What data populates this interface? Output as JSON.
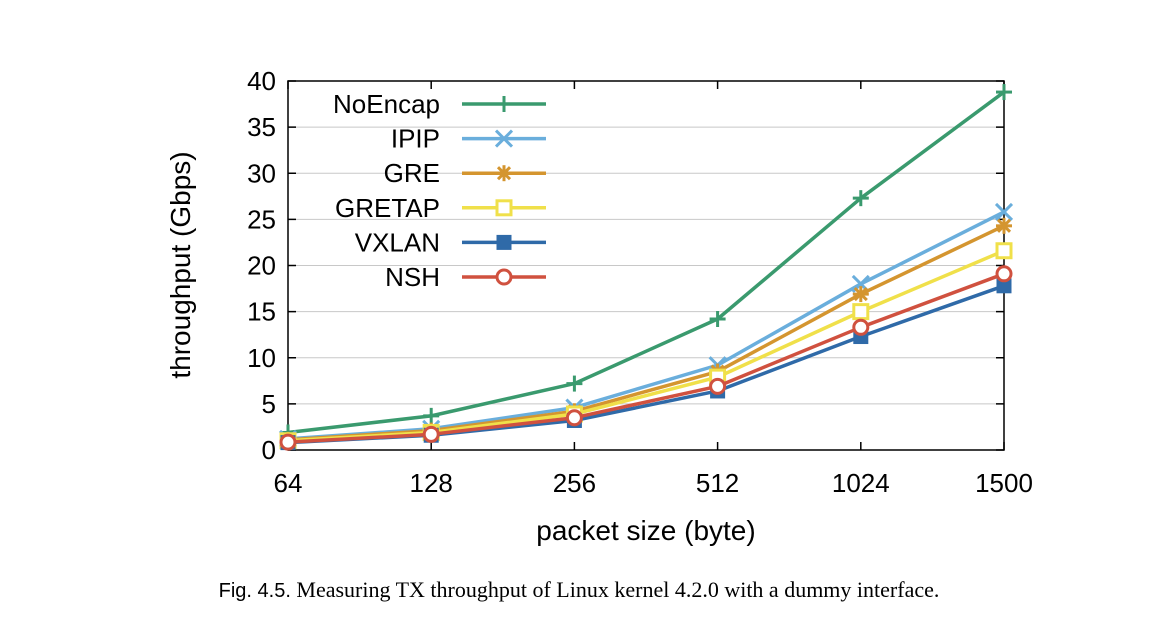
{
  "caption": {
    "label": "Fig. 4.5.",
    "text": "Measuring TX throughput of Linux kernel 4.2.0 with a dummy interface."
  },
  "chart_data": {
    "type": "line",
    "xlabel": "packet size (byte)",
    "ylabel": "throughput (Gbps)",
    "categories": [
      "64",
      "128",
      "256",
      "512",
      "1024",
      "1500"
    ],
    "ylim": [
      0,
      40
    ],
    "yticks": [
      0,
      5,
      10,
      15,
      20,
      25,
      30,
      35,
      40
    ],
    "grid": "horizontal",
    "legend_position": "top-left",
    "series": [
      {
        "name": "NoEncap",
        "color": "#3a9a6e",
        "marker": "plus",
        "values": [
          1.9,
          3.7,
          7.2,
          14.2,
          27.3,
          38.8
        ]
      },
      {
        "name": "IPIP",
        "color": "#6aaedc",
        "marker": "cross",
        "values": [
          1.2,
          2.3,
          4.6,
          9.2,
          18.0,
          25.8
        ]
      },
      {
        "name": "GRE",
        "color": "#d4952f",
        "marker": "star",
        "values": [
          1.1,
          2.1,
          4.2,
          8.5,
          16.9,
          24.3
        ]
      },
      {
        "name": "GRETAP",
        "color": "#f0e04a",
        "marker": "open-square",
        "values": [
          1.0,
          1.9,
          3.9,
          7.9,
          15.0,
          21.6
        ]
      },
      {
        "name": "VXLAN",
        "color": "#2f6aa8",
        "marker": "filled-square",
        "values": [
          0.8,
          1.6,
          3.2,
          6.4,
          12.3,
          17.8
        ]
      },
      {
        "name": "NSH",
        "color": "#d0513f",
        "marker": "open-circle",
        "values": [
          0.85,
          1.7,
          3.5,
          6.9,
          13.3,
          19.1
        ]
      }
    ]
  }
}
